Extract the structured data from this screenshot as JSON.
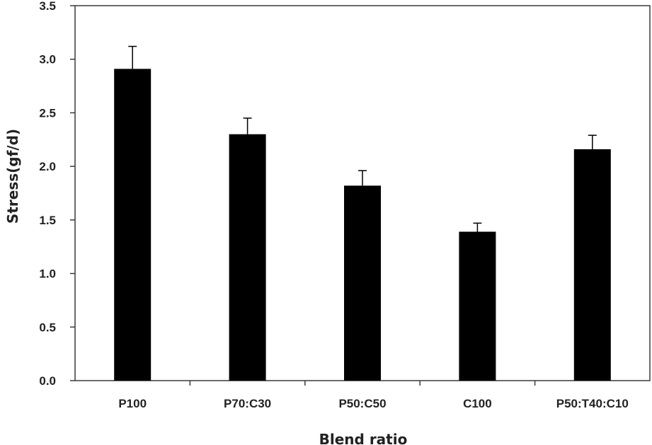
{
  "chart_data": {
    "type": "bar",
    "title": "",
    "xlabel": "Blend ratio",
    "ylabel": "Stress(gf/d)",
    "categories": [
      "P100",
      "P70:C30",
      "P50:C50",
      "C100",
      "P50:T40:C10"
    ],
    "values": [
      2.91,
      2.3,
      1.82,
      1.39,
      2.16
    ],
    "errors": [
      0.21,
      0.15,
      0.14,
      0.08,
      0.13
    ],
    "ylim": [
      0,
      3.5
    ],
    "yticks": [
      0.0,
      0.5,
      1.0,
      1.5,
      2.0,
      2.5,
      3.0,
      3.5
    ],
    "ytick_labels": [
      "0.0",
      "0.5",
      "1.0",
      "1.5",
      "2.0",
      "2.5",
      "3.0",
      "3.5"
    ],
    "grid": false,
    "legend": "none",
    "bar_color": "#000000",
    "axis_color": "#3a3a3a"
  }
}
